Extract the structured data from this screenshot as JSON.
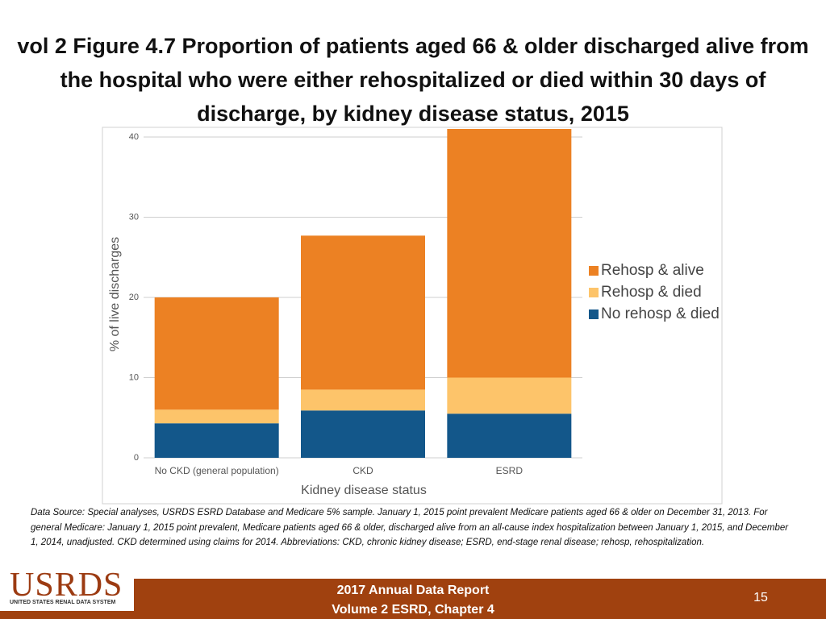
{
  "slide": {
    "title": "vol 2 Figure 4.7 Proportion of patients aged 66 & older discharged alive from the hospital who were either rehospitalized or died within 30 days of discharge, by kidney disease status, 2015",
    "footnote": "Data Source: Special analyses, USRDS ESRD Database and Medicare 5% sample. January 1, 2015 point prevalent Medicare patients aged 66 & older on December 31, 2013. For general Medicare: January 1, 2015 point prevalent, Medicare patients aged 66 & older, discharged alive from an all-cause index hospitalization between January 1, 2015, and December 1, 2014, unadjusted. CKD determined using claims for 2014. Abbreviations: CKD, chronic kidney disease; ESRD, end-stage renal disease; rehosp, rehospitalization.",
    "logo": "USRDS",
    "logo_subtitle": "UNITED STATES RENAL DATA SYSTEM",
    "footer_line1": "2017 Annual Data Report",
    "footer_line2": "Volume 2 ESRD, Chapter 4",
    "page_number": "15"
  },
  "chart_data": {
    "type": "stacked_bar",
    "x_label": "Kidney disease status",
    "y_label": "% of live discharges",
    "categories": [
      "No CKD (general population)",
      "CKD",
      "ESRD"
    ],
    "series": [
      {
        "name": "No rehosp & died",
        "color": "#13578a",
        "values": [
          4.3,
          5.9,
          5.5
        ]
      },
      {
        "name": "Rehosp & died",
        "color": "#fdc46a",
        "values": [
          1.7,
          2.6,
          4.5
        ]
      },
      {
        "name": "Rehosp & alive",
        "color": "#ec8123",
        "values": [
          14.0,
          19.2,
          31.0
        ]
      }
    ],
    "ylim": [
      0,
      41
    ],
    "yticks": [
      0,
      10,
      20,
      30,
      40
    ],
    "grid": true
  }
}
